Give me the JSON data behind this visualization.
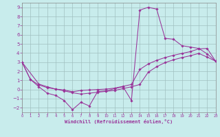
{
  "xlabel": "Windchill (Refroidissement éolien,°C)",
  "bg_color": "#c8ecec",
  "grid_color": "#a0c0c0",
  "line_color": "#993399",
  "xlim": [
    0,
    23
  ],
  "ylim": [
    -2.5,
    9.5
  ],
  "xticks": [
    0,
    1,
    2,
    3,
    4,
    5,
    6,
    7,
    8,
    9,
    10,
    11,
    12,
    13,
    14,
    15,
    16,
    17,
    18,
    19,
    20,
    21,
    22,
    23
  ],
  "yticks": [
    -2,
    -1,
    0,
    1,
    2,
    3,
    4,
    5,
    6,
    7,
    8,
    9
  ],
  "s1_x": [
    0,
    1,
    2,
    3,
    4,
    5,
    6,
    7,
    8,
    9,
    10,
    11,
    12,
    13,
    14,
    15,
    16,
    17,
    18,
    19,
    20,
    21,
    22,
    23
  ],
  "s1_y": [
    3.0,
    1.1,
    0.3,
    -0.4,
    -0.65,
    -1.2,
    -2.2,
    -1.4,
    -1.8,
    -0.2,
    -0.15,
    0.1,
    0.3,
    -1.2,
    8.7,
    9.0,
    8.8,
    5.6,
    5.5,
    4.8,
    4.65,
    4.5,
    3.9,
    3.1
  ],
  "s2_x": [
    0,
    1,
    2,
    3,
    4,
    5,
    6,
    7,
    8,
    9,
    10,
    11,
    12,
    13,
    14,
    15,
    16,
    17,
    18,
    19,
    20,
    21,
    22,
    23
  ],
  "s2_y": [
    3.0,
    1.1,
    0.5,
    0.2,
    0.05,
    -0.05,
    -0.25,
    -0.1,
    -0.05,
    0.0,
    0.05,
    0.15,
    0.35,
    0.55,
    2.2,
    2.8,
    3.2,
    3.5,
    3.75,
    3.95,
    4.15,
    4.45,
    4.5,
    3.1
  ],
  "s3_x": [
    0,
    2,
    3,
    4,
    5,
    6,
    7,
    8,
    9,
    10,
    11,
    12,
    13,
    14,
    15,
    16,
    17,
    18,
    19,
    20,
    21,
    22,
    23
  ],
  "s3_y": [
    3.0,
    0.6,
    0.3,
    0.05,
    -0.15,
    -0.35,
    -0.5,
    -0.4,
    -0.3,
    -0.2,
    -0.1,
    0.1,
    0.3,
    0.55,
    1.9,
    2.5,
    2.95,
    3.25,
    3.5,
    3.7,
    3.95,
    3.55,
    3.1
  ]
}
